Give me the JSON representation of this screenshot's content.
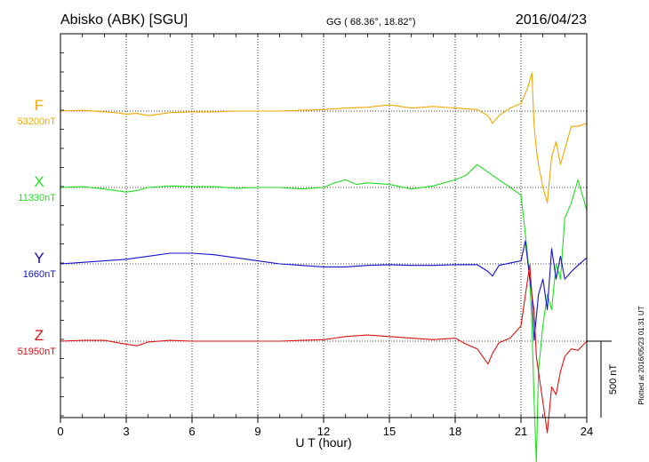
{
  "header": {
    "station": "Abisko (ABK)  [SGU]",
    "coords": "GG ( 68.36°,  18.82°)",
    "date": "2016/04/23"
  },
  "side_note": "Plotted at 2016/05/23 01:31  UT",
  "scale_label": "500 nT",
  "chart_data": {
    "type": "line",
    "xlabel": "U T (hour)",
    "xlim": [
      0,
      24
    ],
    "xticks": [
      0,
      3,
      6,
      9,
      12,
      15,
      18,
      21,
      24
    ],
    "scale_bar_nT": 500,
    "colors": {
      "F": "#f0a800",
      "X": "#22dd22",
      "Y": "#1111cc",
      "Z": "#dd1111"
    },
    "series": [
      {
        "name": "F",
        "baseline_label": "53200nT",
        "x": [
          0,
          1,
          2,
          2.5,
          3,
          3.5,
          4,
          5,
          6,
          7,
          8,
          9,
          10,
          11,
          12,
          13,
          14,
          15,
          16,
          17,
          18,
          19,
          19.5,
          19.7,
          20,
          20.5,
          21,
          21.3,
          21.5,
          21.6,
          21.7,
          21.8,
          22,
          22.2,
          22.4,
          22.6,
          22.8,
          23,
          23.3,
          23.6,
          24
        ],
        "y": [
          0,
          5,
          -5,
          -10,
          -20,
          -15,
          -30,
          -10,
          -5,
          -5,
          0,
          0,
          0,
          5,
          10,
          20,
          25,
          40,
          20,
          30,
          20,
          10,
          -30,
          -80,
          -30,
          20,
          50,
          150,
          250,
          -100,
          -250,
          -350,
          -500,
          -600,
          -300,
          -200,
          -350,
          -250,
          -100,
          -100,
          -80
        ]
      },
      {
        "name": "X",
        "baseline_label": "11330nT",
        "x": [
          0,
          1,
          2,
          3,
          3.5,
          4,
          5,
          6,
          7,
          8,
          9,
          10,
          11,
          12,
          12.5,
          13,
          13.5,
          14,
          15,
          16,
          17,
          18,
          18.5,
          19,
          19.5,
          20,
          20.5,
          21,
          21.2,
          21.4,
          21.5,
          21.6,
          21.7,
          21.8,
          22,
          22.2,
          22.4,
          22.6,
          22.8,
          23,
          23.3,
          23.6,
          24
        ],
        "y": [
          0,
          5,
          -10,
          -30,
          -20,
          0,
          10,
          5,
          5,
          -5,
          0,
          0,
          -10,
          0,
          30,
          50,
          20,
          30,
          20,
          -10,
          10,
          50,
          80,
          150,
          100,
          50,
          0,
          -50,
          -300,
          -600,
          -900,
          -1400,
          -1800,
          -1200,
          -900,
          -700,
          -800,
          -500,
          -600,
          -200,
          -100,
          50,
          -150
        ]
      },
      {
        "name": "Y",
        "baseline_label": "1660nT",
        "x": [
          0,
          1,
          2,
          3,
          4,
          5,
          6,
          7,
          8,
          9,
          10,
          11,
          12,
          13,
          14,
          15,
          16,
          17,
          18,
          19,
          19.5,
          19.7,
          20,
          20.5,
          21,
          21.2,
          21.4,
          21.5,
          21.6,
          21.8,
          22,
          22.2,
          22.4,
          22.6,
          22.8,
          23,
          23.3,
          23.6,
          24
        ],
        "y": [
          0,
          10,
          20,
          30,
          50,
          70,
          70,
          60,
          40,
          20,
          0,
          -10,
          -20,
          -20,
          -10,
          -5,
          -10,
          -10,
          -5,
          -5,
          -50,
          -80,
          -10,
          5,
          20,
          150,
          -100,
          -200,
          -500,
          -200,
          -100,
          -300,
          100,
          -100,
          50,
          -100,
          -50,
          -10,
          40
        ]
      },
      {
        "name": "Z",
        "baseline_label": "51950nT",
        "x": [
          0,
          1,
          2,
          3,
          3.5,
          4,
          5,
          6,
          7,
          8,
          9,
          10,
          11,
          12,
          13,
          14,
          15,
          16,
          17,
          18,
          18.5,
          19,
          19.5,
          19.7,
          20,
          20.5,
          21,
          21.2,
          21.4,
          21.5,
          21.6,
          21.7,
          21.8,
          22,
          22.2,
          22.4,
          22.6,
          22.8,
          23,
          23.3,
          23.6,
          24
        ],
        "y": [
          0,
          5,
          5,
          -20,
          -30,
          -5,
          5,
          0,
          0,
          0,
          0,
          0,
          5,
          10,
          30,
          40,
          30,
          20,
          10,
          20,
          -20,
          -50,
          -150,
          -80,
          -10,
          20,
          100,
          300,
          500,
          300,
          200,
          -100,
          -200,
          -400,
          -600,
          -300,
          -350,
          -200,
          -100,
          -50,
          -60,
          0
        ]
      }
    ]
  }
}
